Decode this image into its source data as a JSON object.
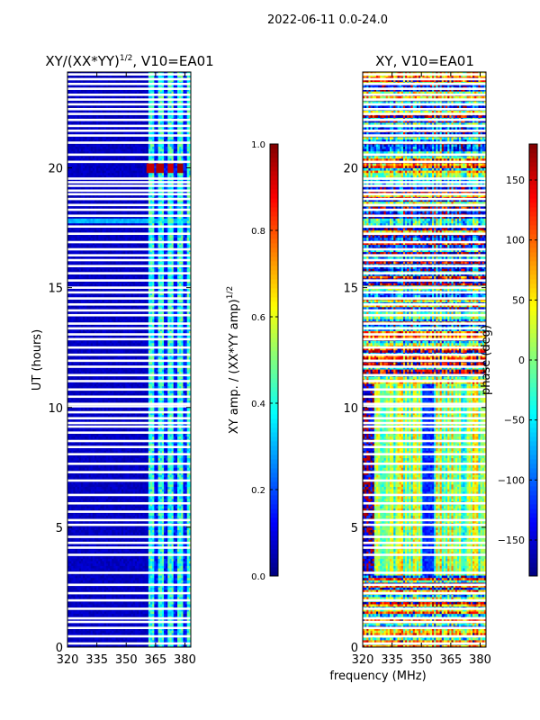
{
  "figure": {
    "suptitle": "2022-06-11 0.0-24.0"
  },
  "chart_data": [
    {
      "type": "heatmap",
      "title": "XY/(XX*YY)$^{1/2}$, V10=EA01",
      "title_main": "XY/(XX*YY)",
      "title_exp": "1/2",
      "title_rest": ", V10=EA01",
      "xlabel": "",
      "ylabel": "UT (hours)",
      "xlim": [
        320,
        383
      ],
      "ylim": [
        0,
        24
      ],
      "xticks": [
        320,
        335,
        350,
        365,
        380
      ],
      "xtick_labels": [
        "320",
        "335",
        "350",
        "365",
        "380"
      ],
      "yticks": [
        0,
        5,
        10,
        15,
        20
      ],
      "ytick_labels": [
        "0",
        "5",
        "10",
        "15",
        "20"
      ],
      "colormap": "jet",
      "description_of_values": "mostly low amplitude (~0.05) at 320-361 MHz; elevated amplitude (~0.3-0.5) in vertical channel stripes at 361-383 MHz; hot spots near 1.0 around 19.8-20.1 h at 361-380 MHz",
      "value_range": [
        0.0,
        1.0
      ],
      "hotspots": [
        {
          "ut": 20.0,
          "freq": 362.5,
          "value": 0.93
        },
        {
          "ut": 20.0,
          "freq": 367.5,
          "value": 0.95
        },
        {
          "ut": 20.0,
          "freq": 372.5,
          "value": 0.92
        },
        {
          "ut": 20.0,
          "freq": 377.5,
          "value": 0.97
        }
      ]
    },
    {
      "type": "colorbar",
      "label": "XY amp. / (XX*YY amp)$^{1/2}$",
      "label_main": "XY amp. / (XX*YY amp)",
      "label_exp": "1/2",
      "range": [
        0.0,
        1.0
      ],
      "ticks": [
        0.0,
        0.2,
        0.4,
        0.6,
        0.8,
        1.0
      ],
      "tick_labels": [
        "0.0",
        "0.2",
        "0.4",
        "0.6",
        "0.8",
        "1.0"
      ]
    },
    {
      "type": "heatmap",
      "title": "XY, V10=EA01",
      "xlabel": "frequency (MHz)",
      "ylabel": "",
      "xlim": [
        320,
        383
      ],
      "ylim": [
        0,
        24
      ],
      "xticks": [
        320,
        335,
        350,
        365,
        380
      ],
      "xtick_labels": [
        "320",
        "335",
        "350",
        "365",
        "380"
      ],
      "yticks": [
        0,
        5,
        10,
        15,
        20
      ],
      "ytick_labels": [
        "0",
        "5",
        "10",
        "15",
        "20"
      ],
      "colormap": "jet",
      "description_of_values": "XY phase in degrees, varied noisy pattern spanning full -180 to 180 range",
      "value_range": [
        -180,
        180
      ]
    },
    {
      "type": "colorbar",
      "label": "phase (deg)",
      "range": [
        -180,
        180
      ],
      "ticks": [
        -150,
        -100,
        -50,
        0,
        50,
        100,
        150
      ],
      "tick_labels": [
        "−150",
        "−100",
        "−50",
        "0",
        "50",
        "100",
        "150"
      ]
    }
  ],
  "blank_rows_ut": [
    0.15,
    0.45,
    0.8,
    1.05,
    1.2,
    1.6,
    1.95,
    2.25,
    2.6,
    3.1,
    3.85,
    4.15,
    4.35,
    4.6,
    5.1,
    5.3,
    5.65,
    6.0,
    6.35,
    6.95,
    7.3,
    7.65,
    8.05,
    8.35,
    8.6,
    8.95,
    9.2,
    9.35,
    9.55,
    9.8,
    10.05,
    10.15,
    10.45,
    10.75,
    11.1,
    11.35,
    11.7,
    11.95,
    12.2,
    12.5,
    12.85,
    13.05,
    13.3,
    13.5,
    13.85,
    14.05,
    14.3,
    14.55,
    14.8,
    15.0,
    15.3,
    15.6,
    15.9,
    16.15,
    16.35,
    16.6,
    16.9,
    17.25,
    17.55,
    18.0,
    18.25,
    18.45,
    18.7,
    18.9,
    19.05,
    19.25,
    19.4,
    19.55,
    20.25,
    20.55,
    21.05,
    21.35,
    21.55,
    21.75,
    22.0,
    22.25,
    22.45,
    22.65,
    22.85,
    23.05,
    23.3,
    23.5,
    23.7,
    23.9
  ]
}
